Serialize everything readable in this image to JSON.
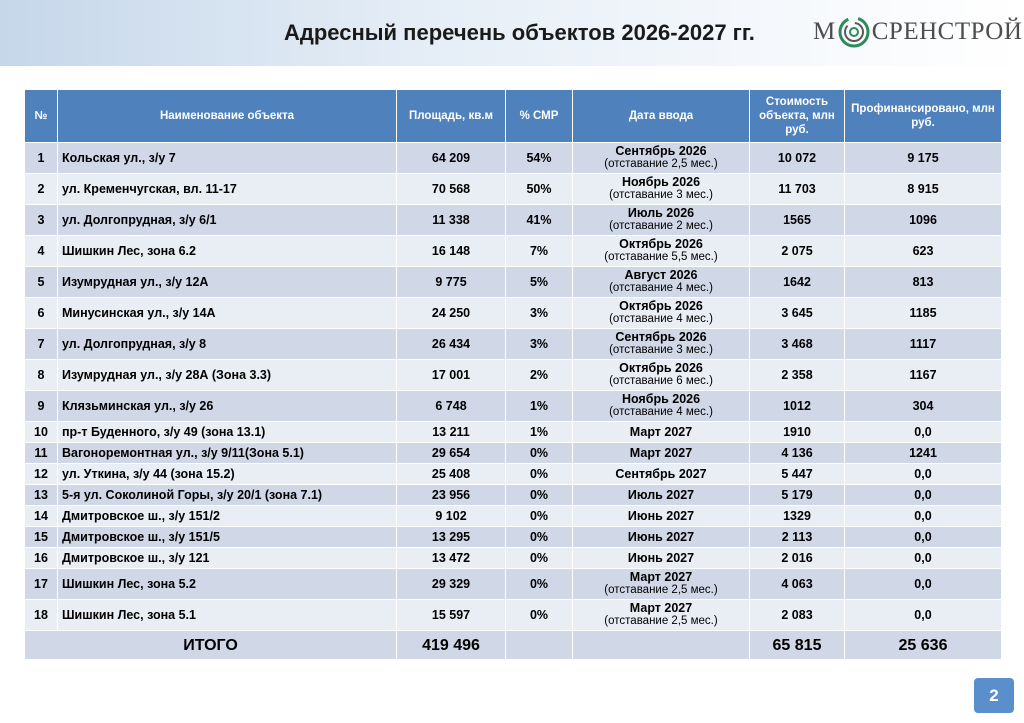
{
  "header": {
    "title": "Адресный перечень объектов 2026-2027 гг.",
    "logo_prefix": "М",
    "logo_suffix": "СРЕНСТРОЙ"
  },
  "table": {
    "columns": [
      "№",
      "Наименование объекта",
      "Площадь, кв.м",
      "% СМР",
      "Дата ввода",
      "Стоимость объекта, млн руб.",
      "Профинансировано, млн руб."
    ],
    "rows": [
      {
        "num": "1",
        "name": "Кольская ул., з/у 7",
        "area": "64 209",
        "smr": "54%",
        "date": "Сентябрь 2026",
        "delay": "(отставание 2,5 мес.)",
        "cost": "10 072",
        "financed": "9 175"
      },
      {
        "num": "2",
        "name": "ул. Кременчугская, вл. 11-17",
        "area": "70 568",
        "smr": "50%",
        "date": "Ноябрь 2026",
        "delay": "(отставание 3 мес.)",
        "cost": "11 703",
        "financed": "8 915"
      },
      {
        "num": "3",
        "name": "ул. Долгопрудная, з/у 6/1",
        "area": "11 338",
        "smr": "41%",
        "date": "Июль 2026",
        "delay": "(отставание 2 мес.)",
        "cost": "1565",
        "financed": "1096"
      },
      {
        "num": "4",
        "name": "Шишкин Лес, зона 6.2",
        "area": "16 148",
        "smr": "7%",
        "date": "Октябрь 2026",
        "delay": "(отставание 5,5 мес.)",
        "cost": "2 075",
        "financed": "623"
      },
      {
        "num": "5",
        "name": "Изумрудная ул., з/у 12А",
        "area": "9 775",
        "smr": "5%",
        "date": "Август 2026",
        "delay": "(отставание 4 мес.)",
        "cost": "1642",
        "financed": "813"
      },
      {
        "num": "6",
        "name": "Минусинская ул., з/у 14А",
        "area": "24 250",
        "smr": "3%",
        "date": "Октябрь 2026",
        "delay": "(отставание 4 мес.)",
        "cost": "3 645",
        "financed": "1185"
      },
      {
        "num": "7",
        "name": "ул. Долгопрудная, з/у 8",
        "area": "26 434",
        "smr": "3%",
        "date": "Сентябрь 2026",
        "delay": "(отставание 3 мес.)",
        "cost": "3 468",
        "financed": "1117"
      },
      {
        "num": "8",
        "name": "Изумрудная ул., з/у 28А (Зона 3.3)",
        "area": "17 001",
        "smr": "2%",
        "date": "Октябрь 2026",
        "delay": "(отставание 6 мес.)",
        "cost": "2 358",
        "financed": "1167"
      },
      {
        "num": "9",
        "name": "Клязьминская ул., з/у 26",
        "area": "6 748",
        "smr": "1%",
        "date": "Ноябрь 2026",
        "delay": "(отставание 4 мес.)",
        "cost": "1012",
        "financed": "304"
      },
      {
        "num": "10",
        "name": "пр-т Буденного, з/у 49 (зона 13.1)",
        "area": "13 211",
        "smr": "1%",
        "date": "Март 2027",
        "delay": "",
        "cost": "1910",
        "financed": "0,0"
      },
      {
        "num": "11",
        "name": "Вагоноремонтная ул., з/у 9/11(Зона 5.1)",
        "area": "29 654",
        "smr": "0%",
        "date": "Март 2027",
        "delay": "",
        "cost": "4 136",
        "financed": "1241"
      },
      {
        "num": "12",
        "name": "ул. Уткина, з/у 44 (зона 15.2)",
        "area": "25 408",
        "smr": "0%",
        "date": "Сентябрь 2027",
        "delay": "",
        "cost": "5 447",
        "financed": "0,0"
      },
      {
        "num": "13",
        "name": "5-я ул. Соколиной Горы, з/у 20/1 (зона 7.1)",
        "area": "23 956",
        "smr": "0%",
        "date": "Июль 2027",
        "delay": "",
        "cost": "5 179",
        "financed": "0,0"
      },
      {
        "num": "14",
        "name": "Дмитровское ш., з/у 151/2",
        "area": "9 102",
        "smr": "0%",
        "date": "Июнь 2027",
        "delay": "",
        "cost": "1329",
        "financed": "0,0"
      },
      {
        "num": "15",
        "name": "Дмитровское ш., з/у 151/5",
        "area": "13 295",
        "smr": "0%",
        "date": "Июнь 2027",
        "delay": "",
        "cost": "2 113",
        "financed": "0,0"
      },
      {
        "num": "16",
        "name": "Дмитровское ш., з/у 121",
        "area": "13 472",
        "smr": "0%",
        "date": "Июнь 2027",
        "delay": "",
        "cost": "2 016",
        "financed": "0,0"
      },
      {
        "num": "17",
        "name": "Шишкин Лес, зона 5.2",
        "area": "29 329",
        "smr": "0%",
        "date": "Март 2027",
        "delay": "(отставание 2,5 мес.)",
        "cost": "4 063",
        "financed": "0,0"
      },
      {
        "num": "18",
        "name": "Шишкин Лес, зона 5.1",
        "area": "15 597",
        "smr": "0%",
        "date": "Март 2027",
        "delay": "(отставание 2,5 мес.)",
        "cost": "2 083",
        "financed": "0,0"
      }
    ],
    "total": {
      "label": "ИТОГО",
      "area": "419 496",
      "cost": "65 815",
      "financed": "25 636"
    }
  },
  "footer": {
    "page_number": "2"
  }
}
